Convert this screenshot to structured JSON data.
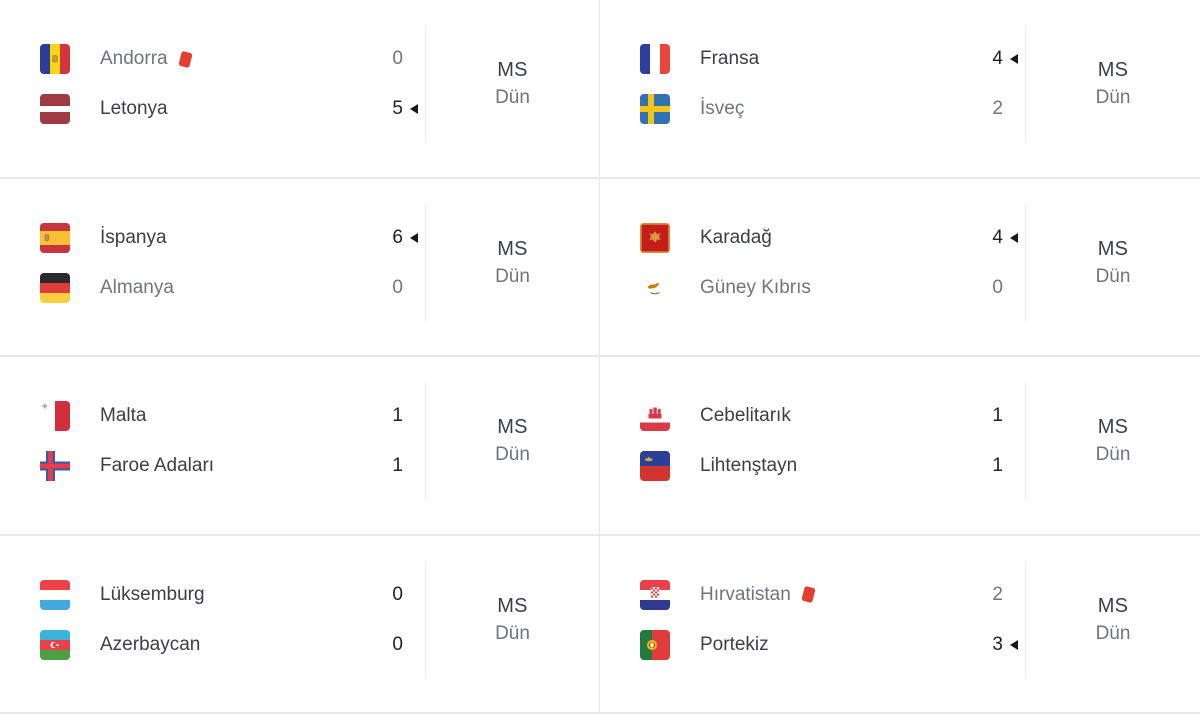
{
  "colors": {
    "text_dark": "#3c4043",
    "text_muted": "#70757a",
    "score_text": "#202124",
    "divider": "#e8e8e8",
    "red_card": "#e33e30",
    "arrow": "#1a1a1a"
  },
  "matches": [
    {
      "home": {
        "name": "Andorra",
        "flag": "andorra",
        "score": "0",
        "result": "loss",
        "red_card": true
      },
      "away": {
        "name": "Letonya",
        "flag": "letonya",
        "score": "5",
        "result": "win",
        "red_card": false
      },
      "status_label": "MS",
      "day_label": "Dün"
    },
    {
      "home": {
        "name": "Fransa",
        "flag": "fransa",
        "score": "4",
        "result": "win",
        "red_card": false
      },
      "away": {
        "name": "İsveç",
        "flag": "isvec",
        "score": "2",
        "result": "loss",
        "red_card": false
      },
      "status_label": "MS",
      "day_label": "Dün"
    },
    {
      "home": {
        "name": "İspanya",
        "flag": "ispanya",
        "score": "6",
        "result": "win",
        "red_card": false
      },
      "away": {
        "name": "Almanya",
        "flag": "almanya",
        "score": "0",
        "result": "loss",
        "red_card": false
      },
      "status_label": "MS",
      "day_label": "Dün"
    },
    {
      "home": {
        "name": "Karadağ",
        "flag": "karadag",
        "score": "4",
        "result": "win",
        "red_card": false
      },
      "away": {
        "name": "Güney Kıbrıs",
        "flag": "guney_kibris",
        "score": "0",
        "result": "loss",
        "red_card": false
      },
      "status_label": "MS",
      "day_label": "Dün"
    },
    {
      "home": {
        "name": "Malta",
        "flag": "malta",
        "score": "1",
        "result": "draw",
        "red_card": false
      },
      "away": {
        "name": "Faroe Adaları",
        "flag": "faroe",
        "score": "1",
        "result": "draw",
        "red_card": false
      },
      "status_label": "MS",
      "day_label": "Dün"
    },
    {
      "home": {
        "name": "Cebelitarık",
        "flag": "cebelitarik",
        "score": "1",
        "result": "draw",
        "red_card": false
      },
      "away": {
        "name": "Lihtenştayn",
        "flag": "lihtenstayn",
        "score": "1",
        "result": "draw",
        "red_card": false
      },
      "status_label": "MS",
      "day_label": "Dün"
    },
    {
      "home": {
        "name": "Lüksemburg",
        "flag": "luksemburg",
        "score": "0",
        "result": "draw",
        "red_card": false
      },
      "away": {
        "name": "Azerbaycan",
        "flag": "azerbaycan",
        "score": "0",
        "result": "draw",
        "red_card": false
      },
      "status_label": "MS",
      "day_label": "Dün"
    },
    {
      "home": {
        "name": "Hırvatistan",
        "flag": "hirvatistan",
        "score": "2",
        "result": "loss",
        "red_card": true
      },
      "away": {
        "name": "Portekiz",
        "flag": "portekiz",
        "score": "3",
        "result": "win",
        "red_card": false
      },
      "status_label": "MS",
      "day_label": "Dün"
    }
  ]
}
